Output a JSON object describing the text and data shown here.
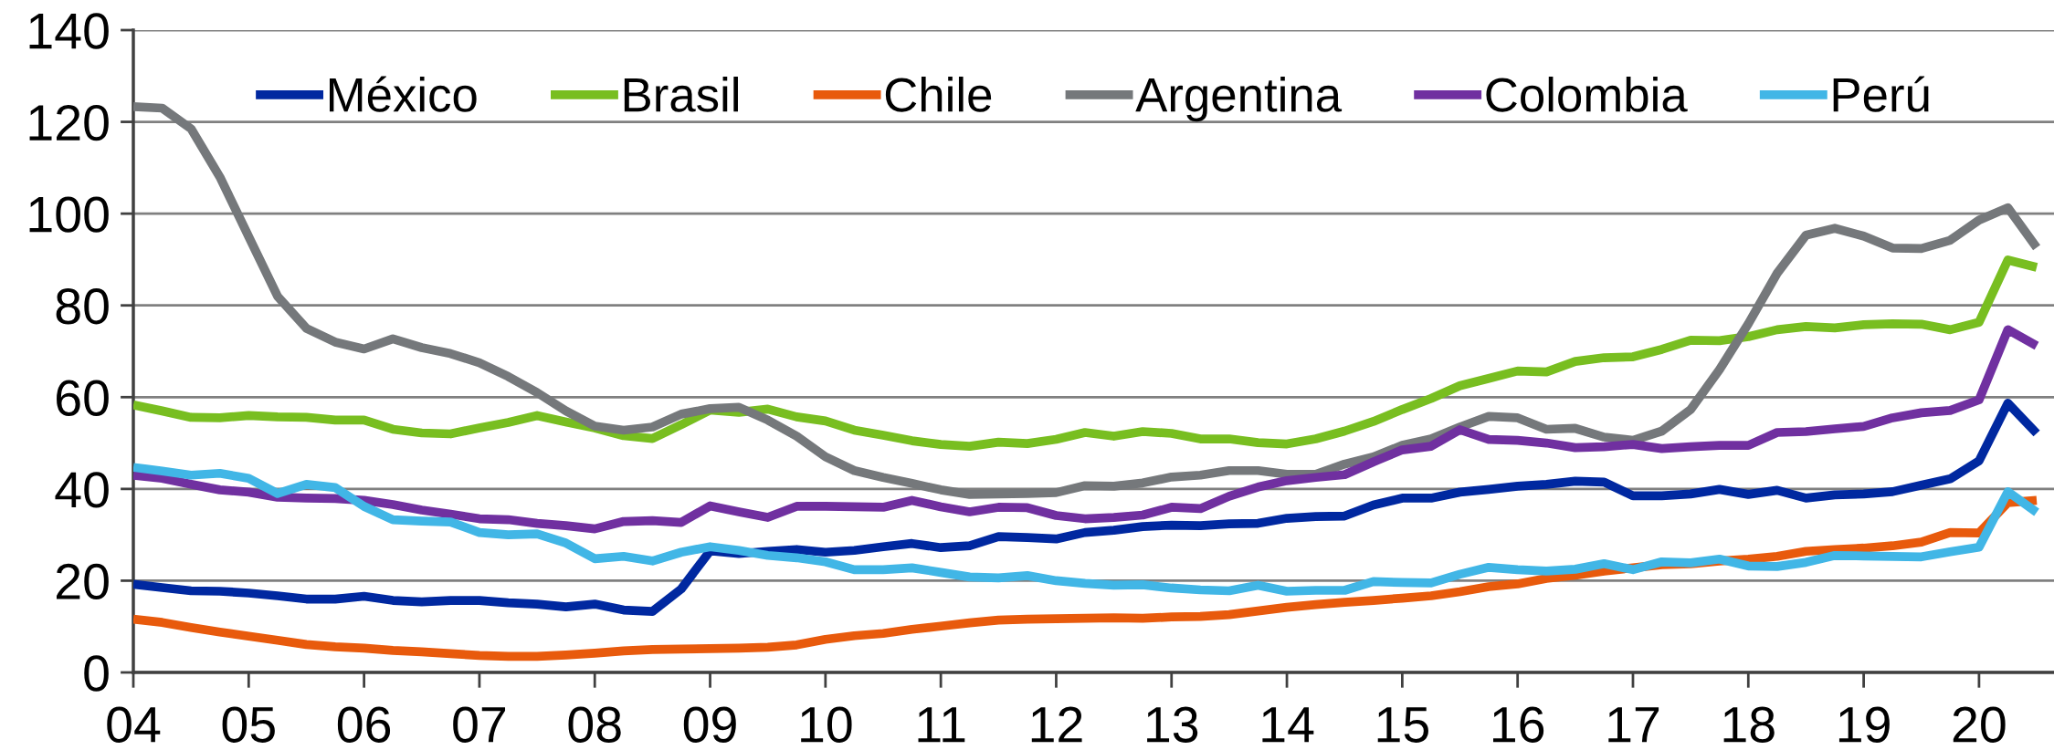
{
  "chart_data": {
    "type": "line",
    "x": [
      2004,
      2004.25,
      2004.5,
      2004.75,
      2005,
      2005.25,
      2005.5,
      2005.75,
      2006,
      2006.25,
      2006.5,
      2006.75,
      2007,
      2007.25,
      2007.5,
      2007.75,
      2008,
      2008.25,
      2008.5,
      2008.75,
      2009,
      2009.25,
      2009.5,
      2009.75,
      2010,
      2010.25,
      2010.5,
      2010.75,
      2011,
      2011.25,
      2011.5,
      2011.75,
      2012,
      2012.25,
      2012.5,
      2012.75,
      2013,
      2013.25,
      2013.5,
      2013.75,
      2014,
      2014.25,
      2014.5,
      2014.75,
      2015,
      2015.25,
      2015.5,
      2015.75,
      2016,
      2016.25,
      2016.5,
      2016.75,
      2017,
      2017.25,
      2017.5,
      2017.75,
      2018,
      2018.25,
      2018.5,
      2018.75,
      2019,
      2019.25,
      2019.5,
      2019.75,
      2020,
      2020.25,
      2020.5
    ],
    "series": [
      {
        "name": "México",
        "color": "#0028a0",
        "values": [
          19.2,
          18.5,
          17.8,
          17.7,
          17.3,
          16.7,
          16.0,
          16.0,
          16.6,
          15.7,
          15.4,
          15.7,
          15.7,
          15.2,
          14.9,
          14.3,
          14.9,
          13.6,
          13.3,
          18.2,
          26.5,
          25.9,
          26.4,
          26.8,
          26.2,
          26.6,
          27.4,
          28.1,
          27.2,
          27.6,
          29.6,
          29.4,
          29.1,
          30.5,
          31.0,
          31.8,
          32.1,
          32.0,
          32.4,
          32.5,
          33.6,
          34.0,
          34.1,
          36.5,
          38.0,
          38.0,
          39.3,
          39.9,
          40.6,
          41.0,
          41.7,
          41.5,
          38.5,
          38.5,
          38.9,
          39.9,
          38.8,
          39.7,
          38.0,
          38.7,
          38.9,
          39.4,
          40.8,
          42.2,
          46.1,
          58.7,
          52.1
        ]
      },
      {
        "name": "Brasil",
        "color": "#78be20",
        "values": [
          58.3,
          57.0,
          55.6,
          55.5,
          56.0,
          55.7,
          55.6,
          55.0,
          55.0,
          53.0,
          52.2,
          52.0,
          53.3,
          54.5,
          56.0,
          54.6,
          53.3,
          51.6,
          51.0,
          54.0,
          57.2,
          56.7,
          57.4,
          55.7,
          54.8,
          52.8,
          51.7,
          50.5,
          49.7,
          49.3,
          50.2,
          49.9,
          50.8,
          52.3,
          51.5,
          52.5,
          52.1,
          50.9,
          50.9,
          50.1,
          49.8,
          50.9,
          52.6,
          54.7,
          57.3,
          59.7,
          62.5,
          64.1,
          65.7,
          65.5,
          67.8,
          68.6,
          68.8,
          70.4,
          72.4,
          72.3,
          73.2,
          74.7,
          75.4,
          75.1,
          75.8,
          76.0,
          75.9,
          74.7,
          76.3,
          89.9,
          88.3
        ]
      },
      {
        "name": "Chile",
        "color": "#e85a0c",
        "values": [
          11.6,
          10.9,
          9.8,
          8.8,
          7.9,
          7.0,
          6.1,
          5.6,
          5.3,
          4.8,
          4.5,
          4.1,
          3.7,
          3.5,
          3.5,
          3.8,
          4.2,
          4.7,
          5.0,
          5.1,
          5.2,
          5.3,
          5.5,
          6.0,
          7.2,
          8.0,
          8.5,
          9.4,
          10.1,
          10.8,
          11.4,
          11.6,
          11.7,
          11.8,
          11.9,
          11.8,
          12.1,
          12.2,
          12.6,
          13.4,
          14.2,
          14.8,
          15.3,
          15.7,
          16.2,
          16.7,
          17.6,
          18.7,
          19.3,
          20.5,
          21.2,
          22.1,
          22.8,
          23.5,
          23.7,
          24.3,
          24.7,
          25.3,
          26.4,
          26.8,
          27.1,
          27.6,
          28.4,
          30.5,
          30.4,
          37.0,
          37.5
        ]
      },
      {
        "name": "Argentina",
        "color": "#75787b",
        "values": [
          123.3,
          123.0,
          118.5,
          108.0,
          95.0,
          82.0,
          75.0,
          72.0,
          70.5,
          72.7,
          70.8,
          69.5,
          67.5,
          64.5,
          61.0,
          57.0,
          53.7,
          52.8,
          53.5,
          56.3,
          57.5,
          57.8,
          55.0,
          51.5,
          47.0,
          44.0,
          42.5,
          41.2,
          39.8,
          38.8,
          38.9,
          39.0,
          39.2,
          40.7,
          40.6,
          41.3,
          42.6,
          43.0,
          44.0,
          44.0,
          43.2,
          43.2,
          45.4,
          47.0,
          49.5,
          50.9,
          53.5,
          55.8,
          55.5,
          53.0,
          53.2,
          51.3,
          50.6,
          52.6,
          57.3,
          66.0,
          76.0,
          87.0,
          95.3,
          96.8,
          95.1,
          92.5,
          92.4,
          94.2,
          98.6,
          101.3,
          92.6
        ]
      },
      {
        "name": "Colombia",
        "color": "#7030a0",
        "values": [
          43.0,
          42.3,
          41.0,
          39.8,
          39.3,
          38.2,
          38.0,
          37.9,
          37.5,
          36.6,
          35.4,
          34.5,
          33.5,
          33.3,
          32.5,
          32.0,
          31.3,
          32.9,
          33.1,
          32.7,
          36.3,
          35.0,
          33.8,
          36.2,
          36.2,
          36.1,
          36.0,
          37.5,
          36.1,
          35.0,
          36.0,
          35.9,
          34.2,
          33.5,
          33.8,
          34.3,
          36.0,
          35.7,
          38.4,
          40.4,
          41.8,
          42.5,
          43.1,
          45.9,
          48.5,
          49.3,
          52.9,
          50.8,
          50.6,
          50.0,
          49.0,
          49.2,
          49.7,
          48.8,
          49.2,
          49.5,
          49.5,
          52.3,
          52.5,
          53.1,
          53.6,
          55.5,
          56.6,
          57.1,
          59.4,
          74.7,
          71.2
        ]
      },
      {
        "name": "Perú",
        "color": "#41b6e6",
        "values": [
          44.7,
          43.9,
          43.0,
          43.4,
          42.3,
          39.0,
          41.0,
          40.3,
          36.2,
          33.3,
          33.0,
          32.8,
          30.5,
          30.0,
          30.2,
          28.2,
          24.8,
          25.3,
          24.3,
          26.2,
          27.4,
          26.6,
          25.5,
          25.0,
          24.1,
          22.4,
          22.4,
          22.8,
          21.8,
          20.8,
          20.6,
          21.1,
          20.0,
          19.4,
          19.0,
          19.1,
          18.4,
          18.0,
          17.8,
          19.0,
          17.7,
          17.9,
          17.9,
          19.8,
          19.6,
          19.5,
          21.4,
          22.9,
          22.4,
          22.1,
          22.5,
          23.7,
          22.4,
          24.1,
          23.9,
          24.7,
          23.2,
          23.1,
          24.0,
          25.5,
          25.4,
          25.3,
          25.2,
          26.3,
          27.3,
          39.4,
          34.9
        ]
      }
    ],
    "xlim": [
      2004,
      2020.65
    ],
    "xticks": [
      {
        "value": 2004,
        "label": "04"
      },
      {
        "value": 2005,
        "label": "05"
      },
      {
        "value": 2006,
        "label": "06"
      },
      {
        "value": 2007,
        "label": "07"
      },
      {
        "value": 2008,
        "label": "08"
      },
      {
        "value": 2009,
        "label": "09"
      },
      {
        "value": 2010,
        "label": "10"
      },
      {
        "value": 2011,
        "label": "11"
      },
      {
        "value": 2012,
        "label": "12"
      },
      {
        "value": 2013,
        "label": "13"
      },
      {
        "value": 2014,
        "label": "14"
      },
      {
        "value": 2015,
        "label": "15"
      },
      {
        "value": 2016,
        "label": "16"
      },
      {
        "value": 2017,
        "label": "17"
      },
      {
        "value": 2018,
        "label": "18"
      },
      {
        "value": 2019,
        "label": "19"
      },
      {
        "value": 2020,
        "label": "20"
      }
    ],
    "ylim": [
      0,
      140
    ],
    "yticks": [
      0,
      20,
      40,
      60,
      80,
      100,
      120,
      140
    ],
    "grid": "y",
    "legend": "top",
    "marker": "none",
    "line_style": "solid"
  }
}
